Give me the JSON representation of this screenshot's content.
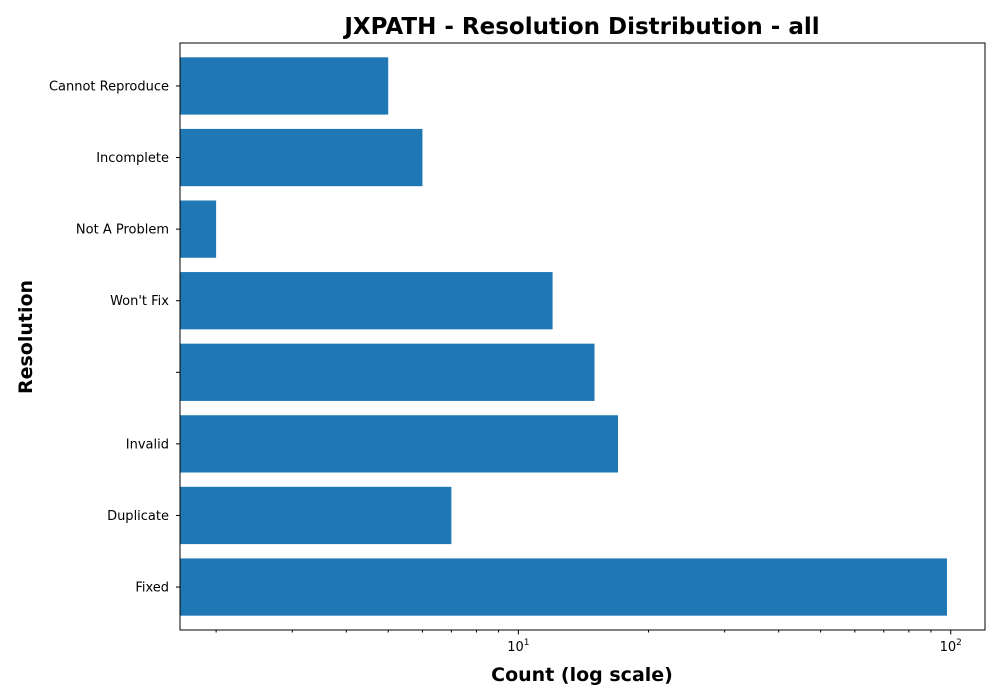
{
  "chart_data": {
    "type": "bar",
    "orientation": "horizontal",
    "title": "JXPATH - Resolution Distribution - all",
    "xlabel": "Count (log scale)",
    "ylabel": "Resolution",
    "x_scale": "log",
    "xlim": [
      1.65,
      120
    ],
    "x_major_ticks": [
      10,
      100
    ],
    "x_tick_labels": [
      {
        "base": "10",
        "exp": "1"
      },
      {
        "base": "10",
        "exp": "2"
      }
    ],
    "grid": false,
    "categories": [
      "Fixed",
      "Duplicate",
      "Invalid",
      "",
      "Won't Fix",
      "Not A Problem",
      "Incomplete",
      "Cannot Reproduce"
    ],
    "values": [
      98,
      7,
      17,
      15,
      12,
      2,
      6,
      5
    ],
    "bar_color": "#1f77b4"
  }
}
